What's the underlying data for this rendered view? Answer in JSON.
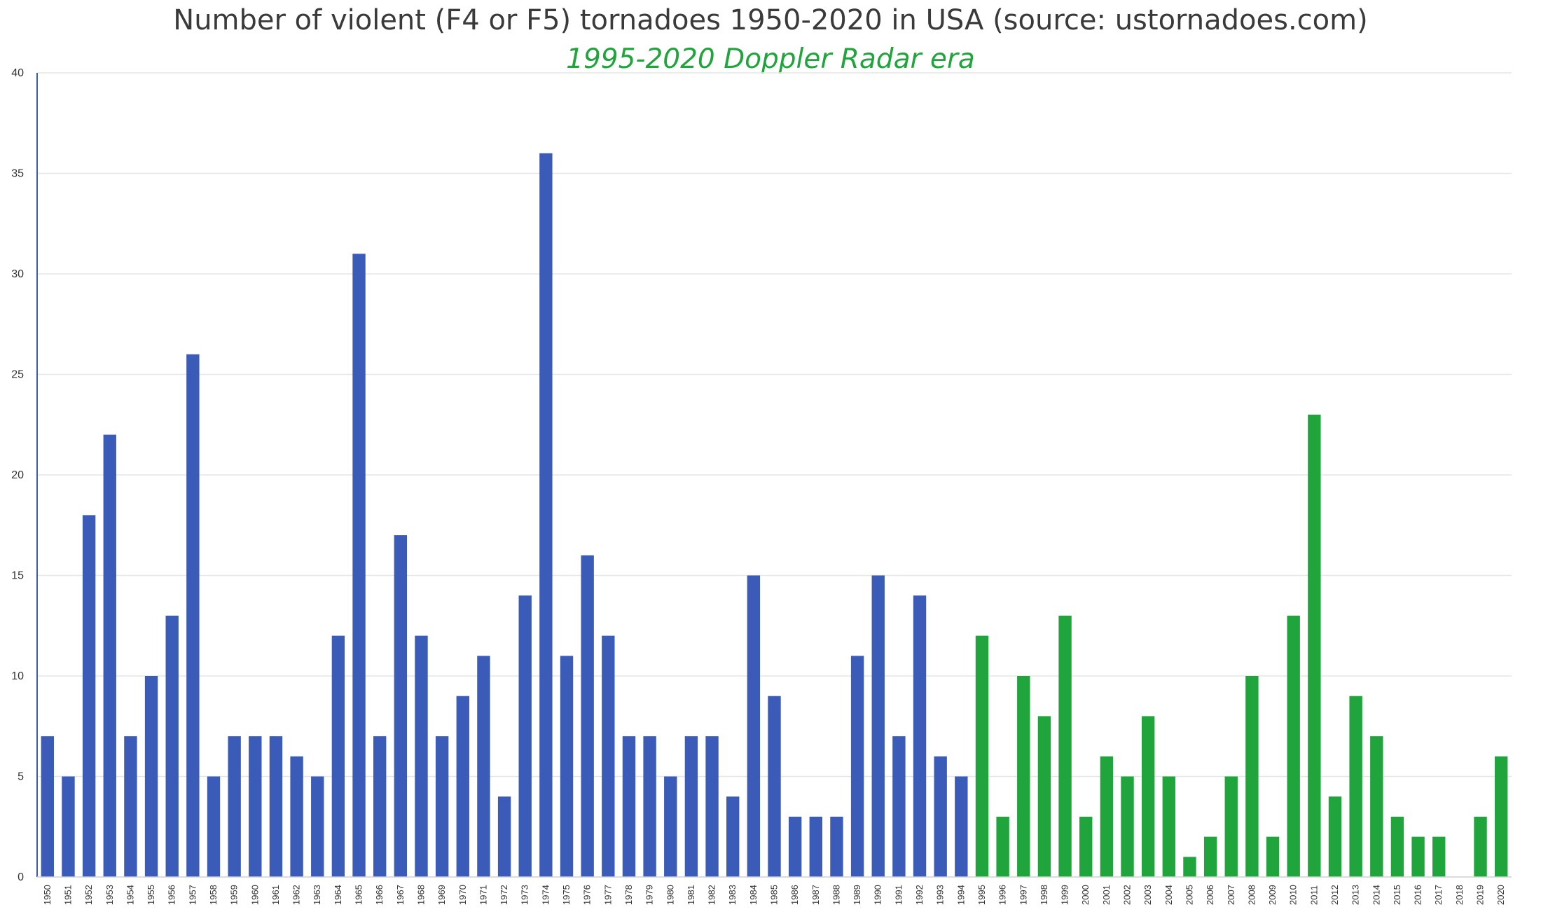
{
  "chart_data": {
    "type": "bar",
    "title": "Number of violent (F4 or F5) tornadoes 1950-2020 in USA (source: ustornadoes.com)",
    "subtitle": "1995-2020 Doppler Radar era",
    "ylim": [
      0,
      40
    ],
    "yticks": [
      0,
      5,
      10,
      15,
      20,
      25,
      30,
      35,
      40
    ],
    "grid": true,
    "colors": {
      "pre_doppler": "#3b5bb8",
      "doppler": "#1fa53b",
      "title": "#3a3a3a",
      "subtitle": "#1fa53b",
      "axis": "#3b5bb8",
      "grid": "#e6e6e6"
    },
    "doppler_start": "1995",
    "categories": [
      "1950",
      "1951",
      "1952",
      "1953",
      "1954",
      "1955",
      "1956",
      "1957",
      "1958",
      "1959",
      "1960",
      "1961",
      "1962",
      "1963",
      "1964",
      "1965",
      "1966",
      "1967",
      "1968",
      "1969",
      "1970",
      "1971",
      "1972",
      "1973",
      "1974",
      "1975",
      "1976",
      "1977",
      "1978",
      "1979",
      "1980",
      "1981",
      "1982",
      "1983",
      "1984",
      "1985",
      "1986",
      "1987",
      "1988",
      "1989",
      "1990",
      "1991",
      "1992",
      "1993",
      "1994",
      "1995",
      "1996",
      "1997",
      "1998",
      "1999",
      "2000",
      "2001",
      "2002",
      "2003",
      "2004",
      "2005",
      "2006",
      "2007",
      "2008",
      "2009",
      "2010",
      "2011",
      "2012",
      "2013",
      "2014",
      "2015",
      "2016",
      "2017",
      "2018",
      "2019",
      "2020"
    ],
    "values": [
      7,
      5,
      18,
      22,
      7,
      10,
      13,
      26,
      5,
      7,
      7,
      7,
      6,
      5,
      12,
      31,
      7,
      17,
      12,
      7,
      9,
      11,
      4,
      14,
      36,
      11,
      16,
      12,
      7,
      7,
      5,
      7,
      7,
      4,
      15,
      9,
      3,
      3,
      3,
      11,
      15,
      7,
      14,
      6,
      5,
      12,
      3,
      10,
      8,
      13,
      3,
      6,
      5,
      8,
      5,
      1,
      2,
      5,
      10,
      2,
      13,
      23,
      4,
      9,
      7,
      3,
      2,
      2,
      0,
      3,
      6
    ]
  }
}
